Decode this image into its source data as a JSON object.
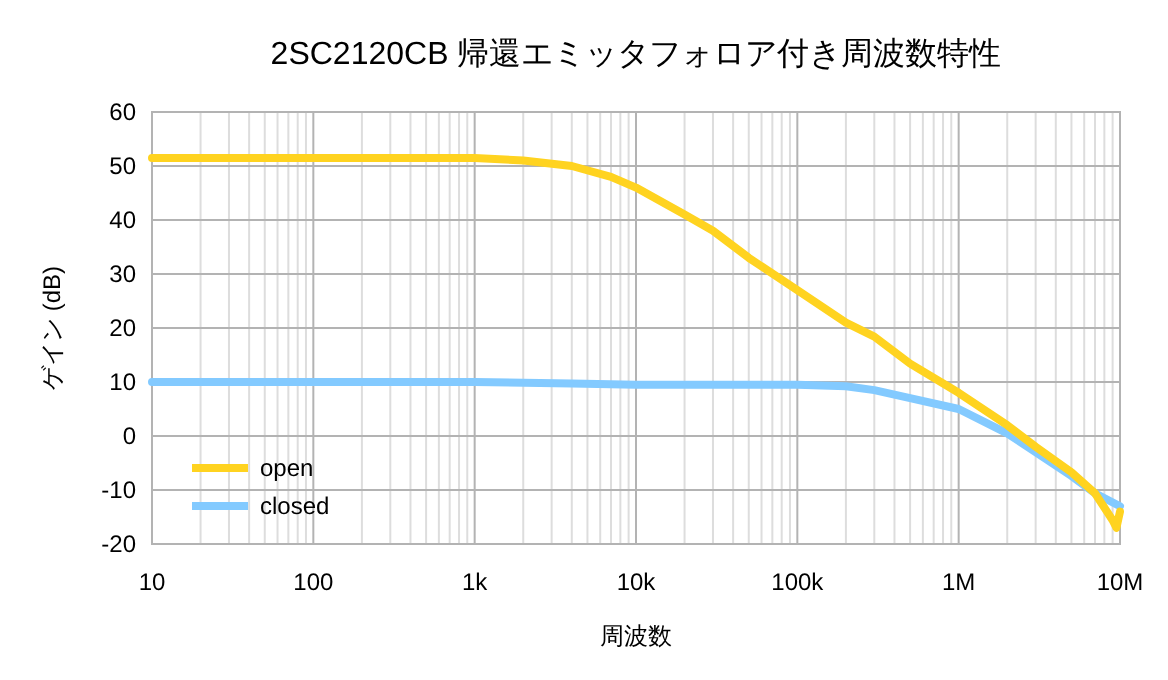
{
  "chart_data": {
    "type": "line",
    "title": "2SC2120CB 帰還エミッタフォロア付き周波数特性",
    "xlabel": "周波数",
    "ylabel": "ゲイン (dB)",
    "log": "x",
    "xlim": [
      10,
      10000000
    ],
    "xticks": [
      {
        "value": 10,
        "label": "10"
      },
      {
        "value": 100,
        "label": "100"
      },
      {
        "value": 1000,
        "label": "1k"
      },
      {
        "value": 10000,
        "label": "10k"
      },
      {
        "value": 100000,
        "label": "100k"
      },
      {
        "value": 1000000,
        "label": "1M"
      },
      {
        "value": 10000000,
        "label": "10M"
      }
    ],
    "ylim": [
      -20,
      60
    ],
    "yticks": [
      -20,
      -10,
      0,
      10,
      20,
      30,
      40,
      50,
      60
    ],
    "grid": true,
    "legend": "bottom left",
    "marker": "none",
    "line_style": "solid",
    "series": [
      {
        "name": "open",
        "color": "#ffd320",
        "x": [
          10,
          100,
          1000,
          2000,
          4000,
          7000,
          10000,
          20000,
          30000,
          50000,
          100000,
          200000,
          300000,
          500000,
          1000000,
          2000000,
          3000000,
          5000000,
          7000000,
          9000000,
          9500000,
          10000000
        ],
        "values": [
          51.5,
          51.5,
          51.5,
          51,
          50,
          48,
          46,
          41,
          38,
          33,
          27,
          21,
          18.4,
          13.4,
          8,
          2,
          -2,
          -6.7,
          -10.6,
          -15.6,
          -17,
          -14
        ]
      },
      {
        "name": "closed",
        "color": "#83caff",
        "x": [
          10,
          100,
          1000,
          4000,
          10000,
          100000,
          200000,
          300000,
          500000,
          1000000,
          2000000,
          3000000,
          5000000,
          7000000,
          10000000
        ],
        "values": [
          10,
          10,
          10,
          9.7,
          9.5,
          9.5,
          9.2,
          8.5,
          7,
          5,
          0.5,
          -3,
          -7.4,
          -10.6,
          -13
        ]
      }
    ]
  }
}
